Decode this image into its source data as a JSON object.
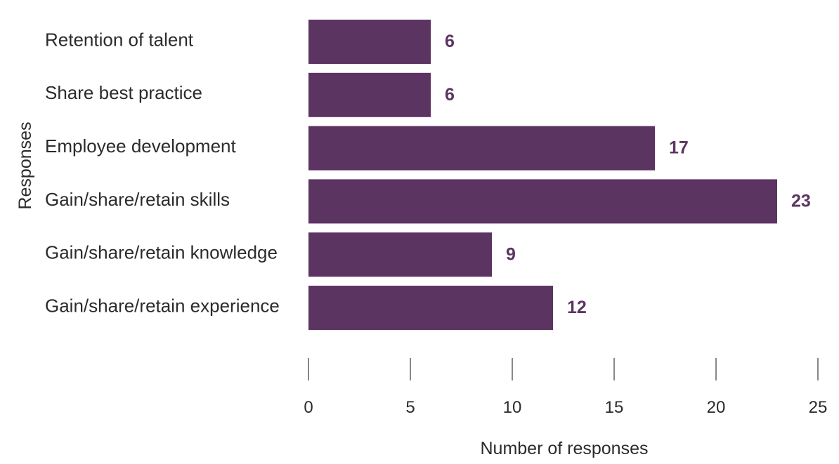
{
  "colors": {
    "bar": "#5c3462",
    "value_label": "#5c3462",
    "text": "#2b2b2b",
    "tick_line": "#3a3a3a"
  },
  "chart_data": {
    "type": "bar",
    "orientation": "horizontal",
    "categories": [
      "Retention of talent",
      "Share best practice",
      "Employee development",
      "Gain/share/retain skills",
      "Gain/share/retain knowledge",
      "Gain/share/retain experience"
    ],
    "values": [
      6,
      6,
      17,
      23,
      9,
      12
    ],
    "data_labels": [
      "6",
      "6",
      "17",
      "23",
      "9",
      "12"
    ],
    "xlabel": "Number of responses",
    "ylabel": "Responses",
    "xlim": [
      0,
      25
    ],
    "xticks": [
      0,
      5,
      10,
      15,
      20,
      25
    ],
    "xtick_labels": [
      "0",
      "5",
      "10",
      "15",
      "20",
      "25"
    ],
    "grid": false,
    "legend": "none"
  }
}
